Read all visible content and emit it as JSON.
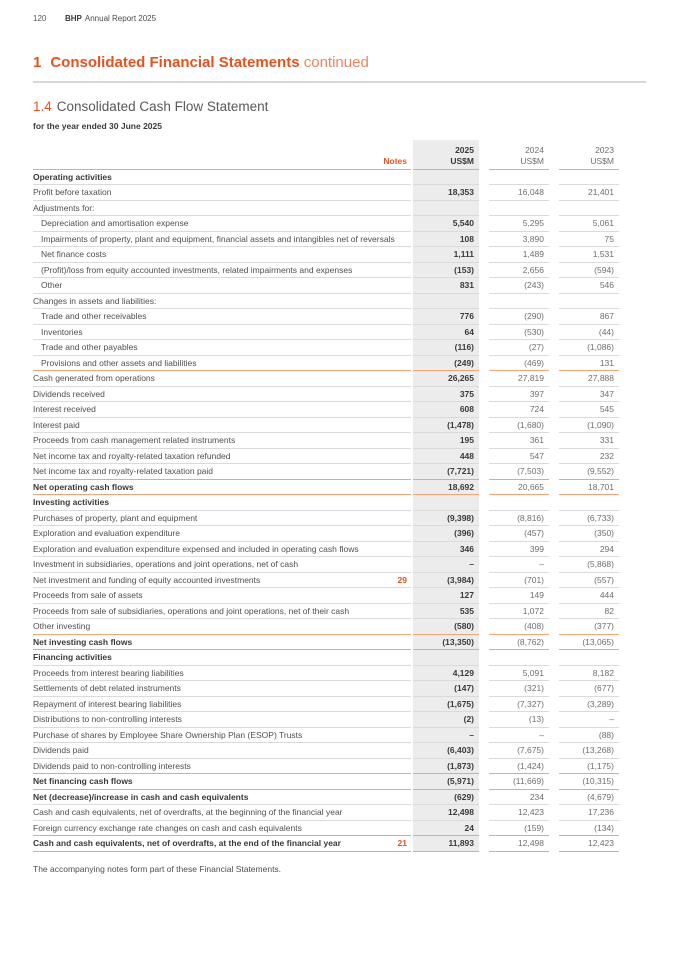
{
  "page_header": {
    "page_number": "120",
    "brand": "BHP",
    "report_title": "Annual Report 2025"
  },
  "section_heading": {
    "number": "1",
    "title": "Consolidated Financial Statements",
    "suffix": "continued"
  },
  "statement": {
    "number": "1.4",
    "title": "Consolidated Cash Flow Statement",
    "period": "for the year ended 30 June 2025"
  },
  "colors": {
    "accent": "#e6521f",
    "accent_light": "#f0835d",
    "orange_rule": "#f2a478",
    "grey_rule": "#dadada",
    "highlight_column": "#ececec"
  },
  "table": {
    "notes_header": "Notes",
    "columns": [
      {
        "year": "2025",
        "unit": "US$M"
      },
      {
        "year": "2024",
        "unit": "US$M"
      },
      {
        "year": "2023",
        "unit": "US$M"
      }
    ],
    "rows": [
      {
        "label": "Operating activities",
        "section": true
      },
      {
        "label": "Profit before taxation",
        "values": [
          "18,353",
          "16,048",
          "21,401"
        ]
      },
      {
        "label": "Adjustments for:"
      },
      {
        "label": "Depreciation and amortisation expense",
        "indent": 1,
        "values": [
          "5,540",
          "5,295",
          "5,061"
        ]
      },
      {
        "label": "Impairments of property, plant and equipment, financial assets and intangibles net of reversals",
        "indent": 1,
        "values": [
          "108",
          "3,890",
          "75"
        ]
      },
      {
        "label": "Net finance costs",
        "indent": 1,
        "values": [
          "1,111",
          "1,489",
          "1,531"
        ]
      },
      {
        "label": "(Profit)/loss from equity accounted investments, related impairments and expenses",
        "indent": 1,
        "values": [
          "(153)",
          "2,656",
          "(594)"
        ]
      },
      {
        "label": "Other",
        "indent": 1,
        "values": [
          "831",
          "(243)",
          "546"
        ]
      },
      {
        "label": "Changes in assets and liabilities:"
      },
      {
        "label": "Trade and other receivables",
        "indent": 1,
        "values": [
          "776",
          "(290)",
          "867"
        ]
      },
      {
        "label": "Inventories",
        "indent": 1,
        "values": [
          "64",
          "(530)",
          "(44)"
        ]
      },
      {
        "label": "Trade and other payables",
        "indent": 1,
        "values": [
          "(116)",
          "(27)",
          "(1,086)"
        ]
      },
      {
        "label": "Provisions and other assets and liabilities",
        "indent": 1,
        "values": [
          "(249)",
          "(469)",
          "131"
        ],
        "border": "orange"
      },
      {
        "label": "Cash generated from operations",
        "values": [
          "26,265",
          "27,819",
          "27,888"
        ]
      },
      {
        "label": "Dividends received",
        "values": [
          "375",
          "397",
          "347"
        ]
      },
      {
        "label": "Interest received",
        "values": [
          "608",
          "724",
          "545"
        ]
      },
      {
        "label": "Interest paid",
        "values": [
          "(1,478)",
          "(1,680)",
          "(1,090)"
        ]
      },
      {
        "label": "Proceeds from cash management related instruments",
        "values": [
          "195",
          "361",
          "331"
        ]
      },
      {
        "label": "Net income tax and royalty-related taxation refunded",
        "values": [
          "448",
          "547",
          "232"
        ]
      },
      {
        "label": "Net income tax and royalty-related taxation paid",
        "values": [
          "(7,721)",
          "(7,503)",
          "(9,552)"
        ],
        "border": "orange"
      },
      {
        "label": "Net operating cash flows",
        "bold": true,
        "values": [
          "18,692",
          "20,665",
          "18,701"
        ],
        "border": "orange"
      },
      {
        "label": "Investing activities",
        "section": true
      },
      {
        "label": "Purchases of property, plant and equipment",
        "values": [
          "(9,398)",
          "(8,816)",
          "(6,733)"
        ]
      },
      {
        "label": "Exploration and evaluation expenditure",
        "values": [
          "(396)",
          "(457)",
          "(350)"
        ]
      },
      {
        "label": "Exploration and evaluation expenditure expensed and included in operating cash flows",
        "values": [
          "346",
          "399",
          "294"
        ]
      },
      {
        "label": "Investment in subsidiaries, operations and joint operations, net of cash",
        "values": [
          "–",
          "–",
          "(5,868)"
        ]
      },
      {
        "label": "Net investment and funding of equity accounted investments",
        "note": "29",
        "values": [
          "(3,984)",
          "(701)",
          "(557)"
        ]
      },
      {
        "label": "Proceeds from sale of assets",
        "values": [
          "127",
          "149",
          "444"
        ]
      },
      {
        "label": "Proceeds from sale of subsidiaries, operations and joint operations, net of their cash",
        "values": [
          "535",
          "1,072",
          "82"
        ]
      },
      {
        "label": "Other investing",
        "values": [
          "(580)",
          "(408)",
          "(377)"
        ],
        "border": "orange"
      },
      {
        "label": "Net investing cash flows",
        "bold": true,
        "values": [
          "(13,350)",
          "(8,762)",
          "(13,065)"
        ],
        "border": "orange"
      },
      {
        "label": "Financing activities",
        "section": true
      },
      {
        "label": "Proceeds from interest bearing liabilities",
        "values": [
          "4,129",
          "5,091",
          "8,182"
        ]
      },
      {
        "label": "Settlements of debt related instruments",
        "values": [
          "(147)",
          "(321)",
          "(677)"
        ]
      },
      {
        "label": "Repayment of interest bearing liabilities",
        "values": [
          "(1,675)",
          "(7,327)",
          "(3,289)"
        ]
      },
      {
        "label": "Distributions to non-controlling interests",
        "values": [
          "(2)",
          "(13)",
          "–"
        ]
      },
      {
        "label": "Purchase of shares by Employee Share Ownership Plan (ESOP) Trusts",
        "values": [
          "–",
          "–",
          "(88)"
        ]
      },
      {
        "label": "Dividends paid",
        "values": [
          "(6,403)",
          "(7,675)",
          "(13,268)"
        ]
      },
      {
        "label": "Dividends paid to non-controlling interests",
        "values": [
          "(1,873)",
          "(1,424)",
          "(1,175)"
        ],
        "border": "orange"
      },
      {
        "label": "Net financing cash flows",
        "bold": true,
        "values": [
          "(5,971)",
          "(11,669)",
          "(10,315)"
        ],
        "border": "orange"
      },
      {
        "label": "Net (decrease)/increase in cash and cash equivalents",
        "bold": true,
        "values": [
          "(629)",
          "234",
          "(4,679)"
        ]
      },
      {
        "label": "Cash and cash equivalents, net of overdrafts, at the beginning of the financial year",
        "values": [
          "12,498",
          "12,423",
          "17,236"
        ]
      },
      {
        "label": "Foreign currency exchange rate changes on cash and cash equivalents",
        "values": [
          "24",
          "(159)",
          "(134)"
        ],
        "border": "orange"
      },
      {
        "label": "Cash and cash equivalents, net of overdrafts, at the end of the financial year",
        "bold": true,
        "note": "21",
        "values": [
          "11,893",
          "12,498",
          "12,423"
        ],
        "border": "orange"
      }
    ]
  },
  "footnote": "The accompanying notes form part of these Financial Statements."
}
